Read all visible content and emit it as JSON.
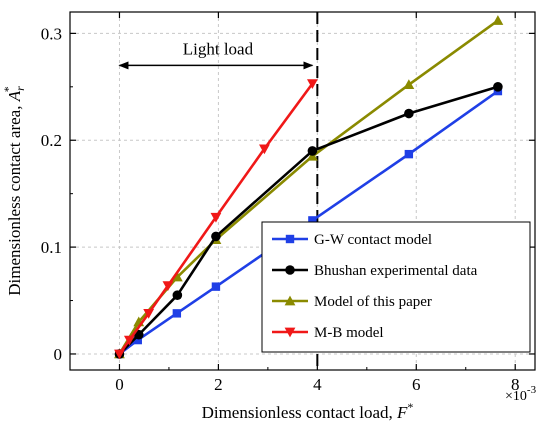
{
  "chart_data": {
    "type": "line",
    "xlabel": "Dimensionless contact load,",
    "xlabel_symbol": "F",
    "xlabel_superscript": "*",
    "ylabel": "Dimensionless contact area,",
    "ylabel_symbol": "A",
    "ylabel_subscript": "r",
    "ylabel_superscript": "*",
    "x_multiplier": "×10",
    "x_multiplier_exp": "-3",
    "xlim": [
      -1.0,
      8.4
    ],
    "ylim": [
      -0.015,
      0.32
    ],
    "xticks": [
      0,
      2,
      4,
      6,
      8
    ],
    "xtick_labels": [
      "0",
      "2",
      "4",
      "6",
      "8"
    ],
    "yticks": [
      0,
      0.1,
      0.2,
      0.3
    ],
    "ytick_labels": [
      "0",
      "0.1",
      "0.2",
      "0.3"
    ],
    "grid": true,
    "legend_position": "bottom-right",
    "annotation": {
      "text": "Light load",
      "arrow_from": 0,
      "arrow_to": 3.9,
      "arrow_y": 0.27,
      "vline_x": 4.0
    },
    "series": [
      {
        "name": "G-W contact model",
        "color": "#1f3fe6",
        "marker": "square",
        "x": [
          0.0,
          0.37,
          1.16,
          1.95,
          3.9,
          5.85,
          7.65
        ],
        "y": [
          0.0,
          0.013,
          0.038,
          0.063,
          0.125,
          0.187,
          0.246
        ]
      },
      {
        "name": "Bhushan experimental data",
        "color": "#000000",
        "marker": "circle",
        "x": [
          0.0,
          0.39,
          1.17,
          1.95,
          3.9,
          5.85,
          7.65
        ],
        "y": [
          0.0,
          0.018,
          0.055,
          0.11,
          0.19,
          0.225,
          0.25
        ]
      },
      {
        "name": "Model of this paper",
        "color": "#8a8a00",
        "marker": "triangle-up",
        "x": [
          0.0,
          0.39,
          1.17,
          1.95,
          3.9,
          5.85,
          7.65
        ],
        "y": [
          0.0,
          0.03,
          0.072,
          0.107,
          0.185,
          0.252,
          0.312
        ]
      },
      {
        "name": "M-B model",
        "color": "#f01818",
        "marker": "triangle-down",
        "x": [
          0.0,
          0.2,
          0.59,
          0.98,
          1.95,
          2.93,
          3.9
        ],
        "y": [
          0.0,
          0.013,
          0.038,
          0.064,
          0.128,
          0.192,
          0.253
        ]
      }
    ]
  }
}
